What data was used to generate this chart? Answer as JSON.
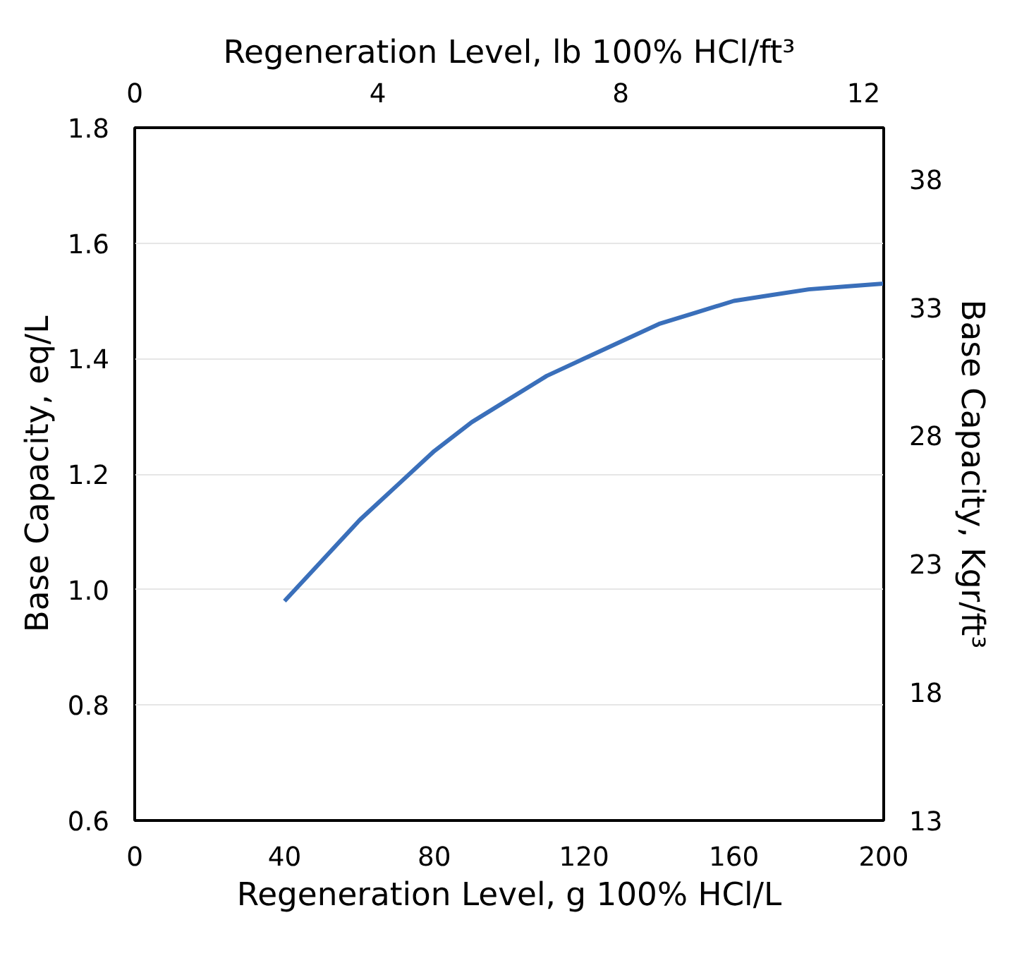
{
  "chart_data": {
    "type": "line",
    "xlabel": "Regeneration Level, g 100% HCl/L",
    "ylabel": "Base Capacity, eq/L",
    "y2label": "Base Capacity, Kgr/ft³",
    "x2label": "Regeneration Level, lb 100% HCl/ft³",
    "x": [
      40,
      50,
      60,
      70,
      80,
      90,
      100,
      110,
      120,
      130,
      140,
      150,
      160,
      170,
      180,
      190,
      200
    ],
    "series": [
      {
        "color": "#3a6fba",
        "values": [
          0.98,
          1.05,
          1.12,
          1.18,
          1.24,
          1.29,
          1.33,
          1.37,
          1.4,
          1.43,
          1.46,
          1.48,
          1.5,
          1.51,
          1.52,
          1.525,
          1.53
        ]
      }
    ],
    "xlim": [
      0,
      200
    ],
    "xticks": [
      0,
      40,
      80,
      120,
      160,
      200
    ],
    "ylim": [
      0.6,
      1.8
    ],
    "yticks": [
      0.6,
      0.8,
      {
        "value": 1.0,
        "label": "1.0"
      },
      1.2,
      1.4,
      1.6,
      1.8
    ],
    "y2lim": [
      13,
      40
    ],
    "y2ticks": [
      13,
      18,
      23,
      28,
      33,
      38
    ],
    "x2lim": [
      0,
      12.33
    ],
    "x2ticks": [
      0,
      4,
      8,
      12
    ],
    "grid": "y",
    "line_style": "solid",
    "marker": "none"
  }
}
